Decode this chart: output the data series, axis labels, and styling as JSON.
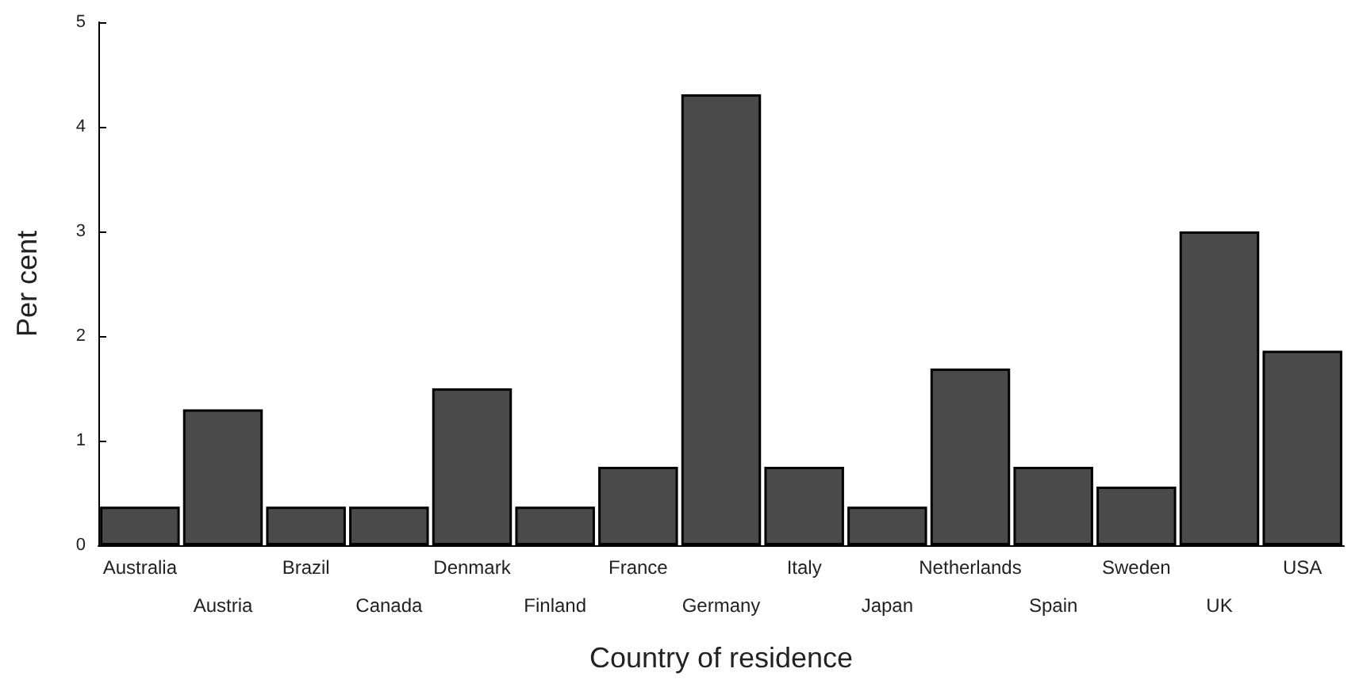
{
  "chart_data": {
    "type": "bar",
    "xlabel": "Country of residence",
    "ylabel": "Per cent",
    "categories": [
      "Australia",
      "Austria",
      "Brazil",
      "Canada",
      "Denmark",
      "Finland",
      "France",
      "Germany",
      "Italy",
      "Japan",
      "Netherlands",
      "Spain",
      "Sweden",
      "UK",
      "USA"
    ],
    "values": [
      0.37,
      1.3,
      0.37,
      0.37,
      1.5,
      0.37,
      0.75,
      4.31,
      0.75,
      0.37,
      1.69,
      0.75,
      0.56,
      3.0,
      1.86
    ],
    "color": "#4a4a4a",
    "ylim": [
      0,
      5
    ],
    "yticks": [
      0,
      1,
      2,
      3,
      4,
      5
    ],
    "grid": false
  }
}
